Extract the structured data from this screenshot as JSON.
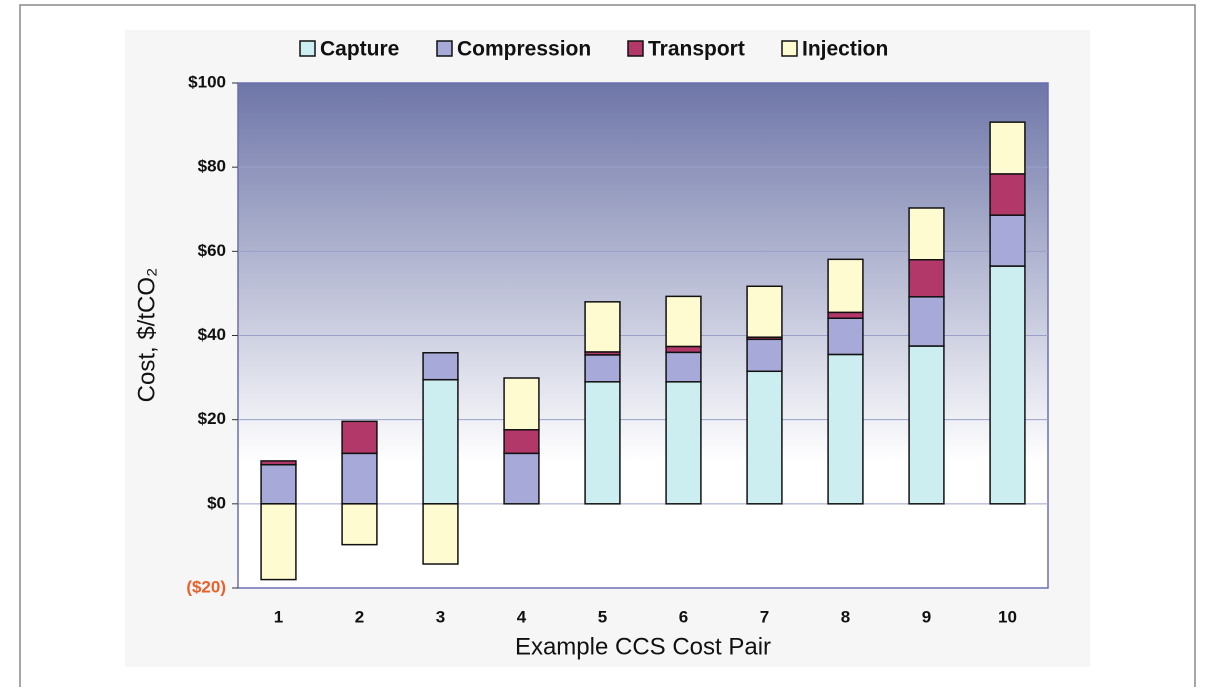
{
  "chart_data": {
    "type": "stacked_bar",
    "x_label": "Example CCS Cost Pair",
    "y_label": "Cost, $/tCO₂",
    "categories": [
      "1",
      "2",
      "3",
      "4",
      "5",
      "6",
      "7",
      "8",
      "9",
      "10"
    ],
    "series": [
      {
        "name": "Capture",
        "color": "#cdeef0",
        "values": [
          0,
          0,
          29.5,
          0,
          29,
          29,
          31.5,
          35.5,
          37.5,
          56.5
        ]
      },
      {
        "name": "Compression",
        "color": "#a7a9d8",
        "values": [
          9.3,
          12,
          6.4,
          12,
          6.4,
          7,
          7.6,
          8.6,
          11.7,
          12.1
        ]
      },
      {
        "name": "Transport",
        "color": "#b2386a",
        "values": [
          0.9,
          7.6,
          0,
          5.6,
          0.7,
          1.4,
          0.5,
          1.4,
          8.8,
          9.8
        ]
      },
      {
        "name": "Injection",
        "color": "#fefbd1",
        "values": [
          -18,
          -9.7,
          -14.3,
          12.3,
          11.9,
          11.9,
          12.1,
          12.6,
          12.3,
          12.3
        ]
      }
    ],
    "ylim": [
      -20,
      100
    ],
    "yticks": [
      {
        "value": -20,
        "label": "($20)"
      },
      {
        "value": 0,
        "label": "$0"
      },
      {
        "value": 20,
        "label": "$20"
      },
      {
        "value": 40,
        "label": "$40"
      },
      {
        "value": 60,
        "label": "$60"
      },
      {
        "value": 80,
        "label": "$80"
      },
      {
        "value": 100,
        "label": "$100"
      }
    ],
    "negative_tick_color": "#e8602c",
    "grid": true,
    "legend": "top"
  }
}
